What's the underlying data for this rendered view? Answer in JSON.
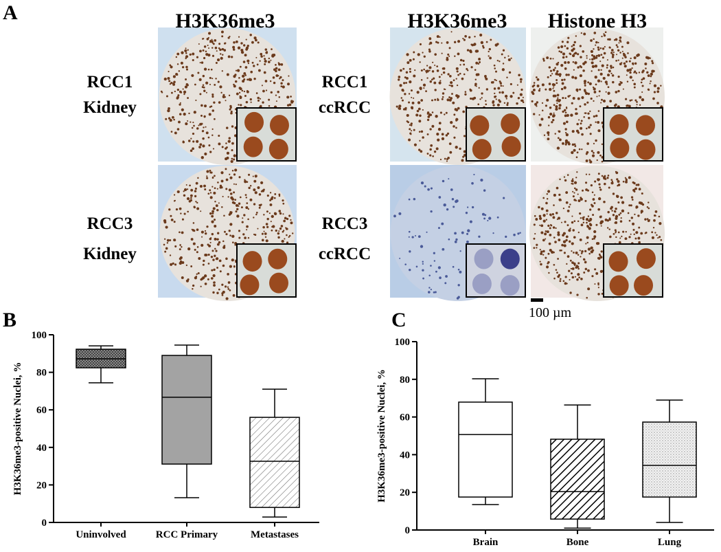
{
  "panel_a": {
    "label": "A",
    "headers": [
      "H3K36me3",
      "H3K36me3",
      "Histone H3"
    ],
    "rows": [
      [
        "RCC1",
        "Kidney"
      ],
      [
        "RCC3",
        "Kidney"
      ],
      [
        "RCC1",
        "ccRCC"
      ],
      [
        "RCC3",
        "ccRCC"
      ]
    ],
    "scale_bar": "100 µm"
  },
  "chart_data": [
    {
      "type": "box",
      "panel": "B",
      "ylabel": "H3K36me3-positive Nuclei, %",
      "categories": [
        "Uninvolved",
        "RCC Primary",
        "Metastases"
      ],
      "min": [
        74.4,
        13.2,
        2.9
      ],
      "q1": [
        82.4,
        31.1,
        8
      ],
      "median": [
        87.2,
        66.7,
        32.6
      ],
      "q3": [
        92.3,
        89,
        56
      ],
      "max": [
        94.1,
        94.5,
        71
      ],
      "fills": [
        "crosshatch",
        "gray",
        "hatch-light"
      ],
      "ylim": [
        0,
        100
      ],
      "yticks": [
        0,
        20,
        40,
        60,
        80,
        100
      ]
    },
    {
      "type": "box",
      "panel": "C",
      "ylabel": "H3K36me3-positive Nuclei, %",
      "categories": [
        "Brain",
        "Bone",
        "Lung"
      ],
      "min": [
        13.5,
        1,
        4
      ],
      "q1": [
        17.5,
        5.8,
        17.5
      ],
      "median": [
        50.7,
        20.4,
        34.3
      ],
      "q3": [
        67.9,
        48.2,
        57.3
      ],
      "max": [
        80.3,
        66.4,
        69
      ],
      "fills": [
        "white",
        "hatch-bold",
        "dots"
      ],
      "ylim": [
        0,
        100
      ],
      "yticks": [
        0,
        20,
        40,
        60,
        80,
        100
      ]
    }
  ]
}
